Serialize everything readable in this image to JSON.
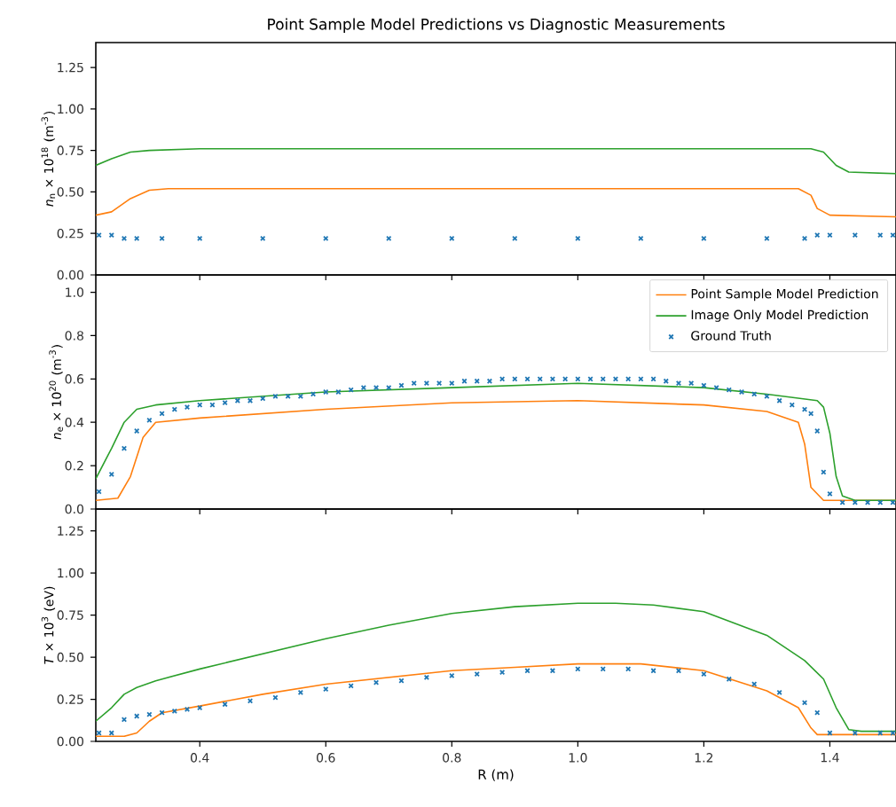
{
  "chart_data": [
    {
      "type": "line",
      "title": "Point Sample Model Predictions vs Diagnostic Measurements",
      "ylabel": "*n*$_{n}$ × 10$^{18}$ (m$^{-3}$)",
      "xlim": [
        0.235,
        1.505
      ],
      "ylim": [
        0,
        1.4
      ],
      "xticks": [
        {
          "value": 0.4,
          "label": null
        },
        {
          "value": 0.6,
          "label": null
        },
        {
          "value": 0.8,
          "label": null
        },
        {
          "value": 1.0,
          "label": null
        },
        {
          "value": 1.2,
          "label": null
        },
        {
          "value": 1.4,
          "label": null
        }
      ],
      "yticks": [
        {
          "value": 0,
          "label": "0.00"
        },
        {
          "value": 0.25,
          "label": "0.25"
        },
        {
          "value": 0.5,
          "label": "0.50"
        },
        {
          "value": 0.75,
          "label": "0.75"
        },
        {
          "value": 1.0,
          "label": "1.00"
        },
        {
          "value": 1.25,
          "label": "1.25"
        }
      ],
      "tick_labels": "y",
      "series": [
        {
          "color": "#ff7f0e",
          "marker": "none",
          "x": [
            0.235,
            0.26,
            0.29,
            0.32,
            0.35,
            1.35,
            1.37,
            1.38,
            1.4,
            1.505
          ],
          "values": [
            0.36,
            0.38,
            0.46,
            0.51,
            0.52,
            0.52,
            0.48,
            0.4,
            0.36,
            0.35
          ]
        },
        {
          "color": "#2ca02c",
          "marker": "none",
          "x": [
            0.235,
            0.26,
            0.29,
            0.32,
            0.4,
            1.37,
            1.39,
            1.41,
            1.43,
            1.505
          ],
          "values": [
            0.66,
            0.7,
            0.74,
            0.75,
            0.76,
            0.76,
            0.74,
            0.66,
            0.62,
            0.61
          ]
        },
        {
          "type": "scatter",
          "color": "#1f77b4",
          "marker": "cross",
          "x": [
            0.24,
            0.26,
            0.28,
            0.3,
            0.34,
            0.4,
            0.5,
            0.6,
            0.7,
            0.8,
            0.9,
            1.0,
            1.1,
            1.2,
            1.3,
            1.36,
            1.38,
            1.4,
            1.44,
            1.48,
            1.5
          ],
          "values": [
            0.24,
            0.24,
            0.22,
            0.22,
            0.22,
            0.22,
            0.22,
            0.22,
            0.22,
            0.22,
            0.22,
            0.22,
            0.22,
            0.22,
            0.22,
            0.22,
            0.24,
            0.24,
            0.24,
            0.24,
            0.24
          ]
        }
      ]
    },
    {
      "type": "line",
      "ylabel": "*n*$_{e}$ × 10$^{20}$ (m$^{-3}$)",
      "xlim": [
        0.235,
        1.505
      ],
      "ylim": [
        0,
        1.08
      ],
      "xticks": [
        {
          "value": 0.4,
          "label": null
        },
        {
          "value": 0.6,
          "label": null
        },
        {
          "value": 0.8,
          "label": null
        },
        {
          "value": 1.0,
          "label": null
        },
        {
          "value": 1.2,
          "label": null
        },
        {
          "value": 1.4,
          "label": null
        }
      ],
      "yticks": [
        {
          "value": 0,
          "label": "0.0"
        },
        {
          "value": 0.2,
          "label": "0.2"
        },
        {
          "value": 0.4,
          "label": "0.4"
        },
        {
          "value": 0.6,
          "label": "0.6"
        },
        {
          "value": 0.8,
          "label": "0.8"
        },
        {
          "value": 1.0,
          "label": "1.0"
        }
      ],
      "tick_labels": "y",
      "legend": "top right",
      "series": [
        {
          "name": "Point Sample Model Prediction",
          "color": "#ff7f0e",
          "marker": "none",
          "x": [
            0.235,
            0.27,
            0.29,
            0.31,
            0.33,
            0.4,
            0.6,
            0.8,
            1.0,
            1.2,
            1.3,
            1.35,
            1.36,
            1.37,
            1.39,
            1.505
          ],
          "values": [
            0.04,
            0.05,
            0.15,
            0.33,
            0.4,
            0.42,
            0.46,
            0.49,
            0.5,
            0.48,
            0.45,
            0.4,
            0.3,
            0.1,
            0.04,
            0.04
          ]
        },
        {
          "name": "Image Only Model Prediction",
          "color": "#2ca02c",
          "marker": "none",
          "x": [
            0.235,
            0.26,
            0.28,
            0.3,
            0.33,
            0.4,
            0.6,
            0.8,
            1.0,
            1.2,
            1.3,
            1.38,
            1.39,
            1.4,
            1.41,
            1.42,
            1.44,
            1.505
          ],
          "values": [
            0.14,
            0.28,
            0.4,
            0.46,
            0.48,
            0.5,
            0.54,
            0.56,
            0.58,
            0.56,
            0.53,
            0.5,
            0.47,
            0.35,
            0.15,
            0.06,
            0.04,
            0.04
          ]
        },
        {
          "type": "scatter",
          "name": "Ground Truth",
          "color": "#1f77b4",
          "marker": "cross",
          "x": [
            0.24,
            0.26,
            0.28,
            0.3,
            0.32,
            0.34,
            0.36,
            0.38,
            0.4,
            0.42,
            0.44,
            0.46,
            0.48,
            0.5,
            0.52,
            0.54,
            0.56,
            0.58,
            0.6,
            0.62,
            0.64,
            0.66,
            0.68,
            0.7,
            0.72,
            0.74,
            0.76,
            0.78,
            0.8,
            0.82,
            0.84,
            0.86,
            0.88,
            0.9,
            0.92,
            0.94,
            0.96,
            0.98,
            1.0,
            1.02,
            1.04,
            1.06,
            1.08,
            1.1,
            1.12,
            1.14,
            1.16,
            1.18,
            1.2,
            1.22,
            1.24,
            1.26,
            1.28,
            1.3,
            1.32,
            1.34,
            1.36,
            1.37,
            1.38,
            1.39,
            1.4,
            1.42,
            1.44,
            1.46,
            1.48,
            1.5
          ],
          "values": [
            0.08,
            0.16,
            0.28,
            0.36,
            0.41,
            0.44,
            0.46,
            0.47,
            0.48,
            0.48,
            0.49,
            0.5,
            0.5,
            0.51,
            0.52,
            0.52,
            0.52,
            0.53,
            0.54,
            0.54,
            0.55,
            0.56,
            0.56,
            0.56,
            0.57,
            0.58,
            0.58,
            0.58,
            0.58,
            0.59,
            0.59,
            0.59,
            0.6,
            0.6,
            0.6,
            0.6,
            0.6,
            0.6,
            0.6,
            0.6,
            0.6,
            0.6,
            0.6,
            0.6,
            0.6,
            0.59,
            0.58,
            0.58,
            0.57,
            0.56,
            0.55,
            0.54,
            0.53,
            0.52,
            0.5,
            0.48,
            0.46,
            0.44,
            0.36,
            0.17,
            0.07,
            0.03,
            0.03,
            0.03,
            0.03,
            0.03
          ]
        }
      ]
    },
    {
      "type": "line",
      "xlabel": "R (m)",
      "ylabel": "*T* × 10$^{3}$ (eV)",
      "xlim": [
        0.235,
        1.505
      ],
      "ylim": [
        0,
        1.38
      ],
      "xticks": [
        {
          "value": 0.4,
          "label": "0.4"
        },
        {
          "value": 0.6,
          "label": "0.6"
        },
        {
          "value": 0.8,
          "label": "0.8"
        },
        {
          "value": 1.0,
          "label": "1.0"
        },
        {
          "value": 1.2,
          "label": "1.2"
        },
        {
          "value": 1.4,
          "label": "1.4"
        }
      ],
      "yticks": [
        {
          "value": 0,
          "label": "0.00"
        },
        {
          "value": 0.25,
          "label": "0.25"
        },
        {
          "value": 0.5,
          "label": "0.50"
        },
        {
          "value": 0.75,
          "label": "0.75"
        },
        {
          "value": 1.0,
          "label": "1.00"
        },
        {
          "value": 1.25,
          "label": "1.25"
        }
      ],
      "series": [
        {
          "color": "#ff7f0e",
          "marker": "none",
          "x": [
            0.235,
            0.28,
            0.3,
            0.32,
            0.34,
            0.4,
            0.5,
            0.6,
            0.7,
            0.8,
            0.9,
            1.0,
            1.1,
            1.2,
            1.3,
            1.35,
            1.37,
            1.38,
            1.505
          ],
          "values": [
            0.03,
            0.03,
            0.05,
            0.12,
            0.17,
            0.21,
            0.28,
            0.34,
            0.38,
            0.42,
            0.44,
            0.46,
            0.46,
            0.42,
            0.3,
            0.2,
            0.08,
            0.04,
            0.04
          ]
        },
        {
          "color": "#2ca02c",
          "marker": "none",
          "x": [
            0.235,
            0.26,
            0.28,
            0.3,
            0.33,
            0.4,
            0.5,
            0.6,
            0.7,
            0.8,
            0.9,
            1.0,
            1.06,
            1.12,
            1.2,
            1.3,
            1.36,
            1.39,
            1.41,
            1.43,
            1.45,
            1.505
          ],
          "values": [
            0.12,
            0.2,
            0.28,
            0.32,
            0.36,
            0.43,
            0.52,
            0.61,
            0.69,
            0.76,
            0.8,
            0.82,
            0.82,
            0.81,
            0.77,
            0.63,
            0.48,
            0.37,
            0.2,
            0.07,
            0.06,
            0.06
          ]
        },
        {
          "type": "scatter",
          "color": "#1f77b4",
          "marker": "cross",
          "x": [
            0.24,
            0.26,
            0.28,
            0.3,
            0.32,
            0.34,
            0.36,
            0.38,
            0.4,
            0.44,
            0.48,
            0.52,
            0.56,
            0.6,
            0.64,
            0.68,
            0.72,
            0.76,
            0.8,
            0.84,
            0.88,
            0.92,
            0.96,
            1.0,
            1.04,
            1.08,
            1.12,
            1.16,
            1.2,
            1.24,
            1.28,
            1.32,
            1.36,
            1.38,
            1.4,
            1.44,
            1.48,
            1.5
          ],
          "values": [
            0.05,
            0.05,
            0.13,
            0.15,
            0.16,
            0.17,
            0.18,
            0.19,
            0.2,
            0.22,
            0.24,
            0.26,
            0.29,
            0.31,
            0.33,
            0.35,
            0.36,
            0.38,
            0.39,
            0.4,
            0.41,
            0.42,
            0.42,
            0.43,
            0.43,
            0.43,
            0.42,
            0.42,
            0.4,
            0.37,
            0.34,
            0.29,
            0.23,
            0.17,
            0.05,
            0.05,
            0.05,
            0.05
          ]
        }
      ]
    }
  ]
}
